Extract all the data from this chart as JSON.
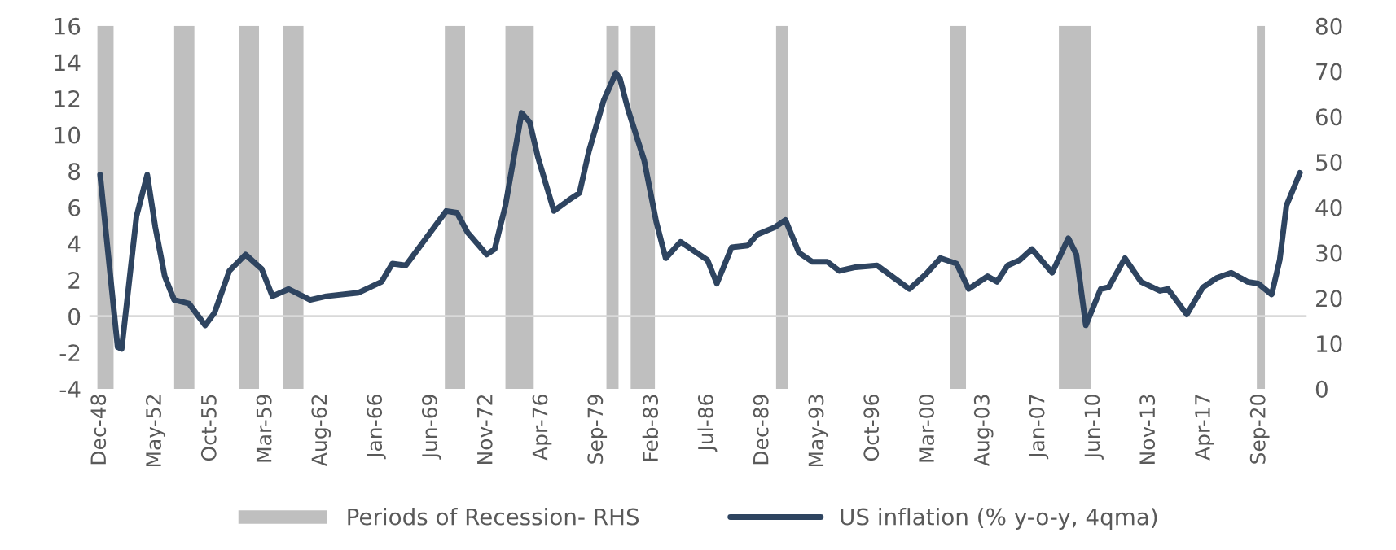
{
  "chart_data": {
    "type": "line",
    "xlim": [
      "1948-04",
      "2023-08"
    ],
    "xticks": [
      {
        "value": "1948-12",
        "label": "Dec-48"
      },
      {
        "value": "1952-05",
        "label": "May-52"
      },
      {
        "value": "1955-10",
        "label": "Oct-55"
      },
      {
        "value": "1959-03",
        "label": "Mar-59"
      },
      {
        "value": "1962-08",
        "label": "Aug-62"
      },
      {
        "value": "1966-01",
        "label": "Jan-66"
      },
      {
        "value": "1969-06",
        "label": "Jun-69"
      },
      {
        "value": "1972-11",
        "label": "Nov-72"
      },
      {
        "value": "1976-04",
        "label": "Apr-76"
      },
      {
        "value": "1979-09",
        "label": "Sep-79"
      },
      {
        "value": "1983-02",
        "label": "Feb-83"
      },
      {
        "value": "1986-07",
        "label": "Jul-86"
      },
      {
        "value": "1989-12",
        "label": "Dec-89"
      },
      {
        "value": "1993-05",
        "label": "May-93"
      },
      {
        "value": "1996-10",
        "label": "Oct-96"
      },
      {
        "value": "2000-03",
        "label": "Mar-00"
      },
      {
        "value": "2003-08",
        "label": "Aug-03"
      },
      {
        "value": "2007-01",
        "label": "Jan-07"
      },
      {
        "value": "2010-06",
        "label": "Jun-10"
      },
      {
        "value": "2013-11",
        "label": "Nov-13"
      },
      {
        "value": "2017-04",
        "label": "Apr-17"
      },
      {
        "value": "2020-09",
        "label": "Sep-20"
      }
    ],
    "ylim": [
      -4,
      16
    ],
    "yticks": [
      -4,
      -2,
      0,
      2,
      4,
      6,
      8,
      10,
      12,
      14,
      16
    ],
    "y2lim": [
      0,
      80
    ],
    "y2ticks": [
      0,
      10,
      20,
      30,
      40,
      50,
      60,
      70,
      80
    ],
    "grid": false,
    "legend": "bottom",
    "ref_lines": [
      {
        "axis": "y",
        "value": 0,
        "color": "#d9d9d9"
      }
    ],
    "bands": [
      {
        "axis": "x",
        "from": "1948-10",
        "to": "1949-10",
        "color": "#bfbfbf",
        "label": "Periods of Recession- RHS"
      },
      {
        "axis": "x",
        "from": "1953-07",
        "to": "1954-10",
        "color": "#bfbfbf"
      },
      {
        "axis": "x",
        "from": "1957-07",
        "to": "1958-10",
        "color": "#bfbfbf"
      },
      {
        "axis": "x",
        "from": "1960-04",
        "to": "1961-07",
        "color": "#bfbfbf"
      },
      {
        "axis": "x",
        "from": "1970-04",
        "to": "1971-07",
        "color": "#bfbfbf"
      },
      {
        "axis": "x",
        "from": "1974-01",
        "to": "1975-10",
        "color": "#bfbfbf"
      },
      {
        "axis": "x",
        "from": "1980-04",
        "to": "1981-01",
        "color": "#bfbfbf"
      },
      {
        "axis": "x",
        "from": "1981-10",
        "to": "1983-04",
        "color": "#bfbfbf"
      },
      {
        "axis": "x",
        "from": "1990-10",
        "to": "1991-07",
        "color": "#bfbfbf"
      },
      {
        "axis": "x",
        "from": "2001-07",
        "to": "2002-07",
        "color": "#bfbfbf"
      },
      {
        "axis": "x",
        "from": "2008-04",
        "to": "2010-04",
        "color": "#bfbfbf"
      },
      {
        "axis": "x",
        "from": "2020-07",
        "to": "2021-01",
        "color": "#bfbfbf"
      }
    ],
    "series": [
      {
        "name": "US inflation (% y-o-y, 4qma)",
        "color": "#2e4460",
        "x": [
          "1948-12",
          "1950-01",
          "1950-04",
          "1951-03",
          "1951-11",
          "1952-05",
          "1952-12",
          "1953-07",
          "1954-06",
          "1955-06",
          "1956-01",
          "1956-12",
          "1957-12",
          "1958-12",
          "1959-08",
          "1960-08",
          "1961-12",
          "1962-12",
          "1964-12",
          "1966-05",
          "1967-01",
          "1967-11",
          "1968-11",
          "1970-05",
          "1971-01",
          "1971-09",
          "1972-11",
          "1973-05",
          "1974-01",
          "1975-01",
          "1975-07",
          "1976-01",
          "1977-01",
          "1977-12",
          "1978-08",
          "1979-03",
          "1980-02",
          "1980-11",
          "1981-02",
          "1981-08",
          "1982-08",
          "1983-05",
          "1983-12",
          "1984-11",
          "1985-11",
          "1986-07",
          "1987-02",
          "1988-01",
          "1989-01",
          "1989-08",
          "1990-09",
          "1991-05",
          "1992-03",
          "1993-01",
          "1993-12",
          "1994-09",
          "1995-09",
          "1997-01",
          "1997-12",
          "1999-01",
          "2000-01",
          "2000-12",
          "2001-12",
          "2002-09",
          "2003-11",
          "2004-06",
          "2005-02",
          "2005-11",
          "2006-08",
          "2007-11",
          "2008-11",
          "2009-05",
          "2009-12",
          "2010-11",
          "2011-05",
          "2012-05",
          "2013-05",
          "2014-07",
          "2015-01",
          "2016-03",
          "2017-03",
          "2018-01",
          "2018-12",
          "2019-12",
          "2020-08",
          "2021-06",
          "2021-12",
          "2022-05",
          "2023-03"
        ],
        "values": [
          7.8,
          -1.7,
          -1.8,
          5.5,
          7.8,
          4.9,
          2.2,
          0.9,
          0.7,
          -0.5,
          0.2,
          2.5,
          3.4,
          2.6,
          1.1,
          1.5,
          0.9,
          1.1,
          1.3,
          1.9,
          2.9,
          2.8,
          4.0,
          5.8,
          5.7,
          4.6,
          3.4,
          3.7,
          6.1,
          11.2,
          10.7,
          8.8,
          5.8,
          6.4,
          6.8,
          9.1,
          11.9,
          13.4,
          13.1,
          11.4,
          8.6,
          5.2,
          3.2,
          4.1,
          3.5,
          3.1,
          1.8,
          3.8,
          3.9,
          4.5,
          4.9,
          5.3,
          3.5,
          3.0,
          3.0,
          2.5,
          2.7,
          2.8,
          2.2,
          1.5,
          2.3,
          3.2,
          2.9,
          1.5,
          2.2,
          1.9,
          2.8,
          3.1,
          3.7,
          2.4,
          4.3,
          3.4,
          -0.5,
          1.5,
          1.6,
          3.2,
          1.9,
          1.4,
          1.5,
          0.1,
          1.6,
          2.1,
          2.4,
          1.9,
          1.8,
          1.2,
          3.1,
          6.1,
          7.9
        ]
      }
    ]
  }
}
